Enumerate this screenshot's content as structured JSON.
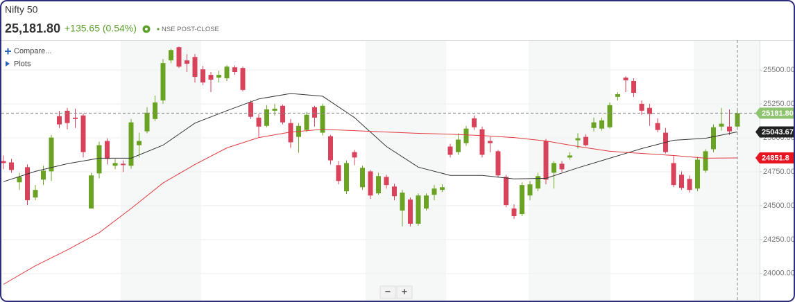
{
  "header": {
    "title": "Nifty 50",
    "price": "25,181.80",
    "change": "+135.65 (0.54%)",
    "exchange": "NSE POST-CLOSE"
  },
  "toolbar": {
    "compare": "Compare...",
    "plots": "Plots",
    "zoom_out": "−",
    "zoom_in": "+"
  },
  "chart_data": {
    "type": "candlestick",
    "open": [
      24829,
      24819,
      24672,
      24784,
      24560,
      24692,
      24753,
      25160,
      25200,
      25149,
      25165,
      24479,
      24738,
      24977,
      24794,
      24809,
      24794,
      24946,
      25048,
      25139,
      25276,
      25571,
      25668,
      25571,
      25596,
      25505,
      25464,
      25444,
      25439,
      25520,
      25515,
      25261,
      25149,
      25088,
      25200,
      25236,
      25109,
      25007,
      25058,
      25226,
      25038,
      25012,
      24799,
      24606,
      24895,
      24636,
      24753,
      24591,
      24712,
      24641,
      24464,
      24545,
      24367,
      24479,
      24580,
      24616,
      24936,
      24895,
      24961,
      25144,
      25063,
      24977,
      24901,
      24712,
      24479,
      24438,
      24575,
      24626,
      24977,
      24743,
      24809,
      24855,
      24982,
      25007,
      25073,
      25068,
      25078,
      25302,
      25444,
      25419,
      25251,
      25221,
      25109,
      25038,
      24814,
      24728,
      24697,
      24626,
      24758,
      24916,
      25083,
      25083,
      25083
    ],
    "high": [
      24870,
      24845,
      24743,
      24804,
      24652,
      24794,
      25022,
      25200,
      25221,
      25215,
      25180,
      24743,
      24972,
      24997,
      24845,
      24834,
      25139,
      25038,
      25226,
      25312,
      25581,
      25657,
      25673,
      25617,
      25617,
      25530,
      25485,
      25495,
      25535,
      25535,
      25525,
      25276,
      25175,
      25241,
      25251,
      25246,
      25139,
      25109,
      25190,
      25236,
      25251,
      25022,
      24829,
      24834,
      24911,
      24794,
      24763,
      24743,
      24728,
      24662,
      24616,
      24560,
      24591,
      24591,
      24652,
      24657,
      24956,
      25033,
      25088,
      25165,
      25083,
      25007,
      24911,
      24728,
      24509,
      24672,
      24682,
      24743,
      24992,
      24829,
      24829,
      24895,
      25033,
      25027,
      25149,
      25149,
      25261,
      25337,
      25454,
      25439,
      25276,
      25251,
      25144,
      25073,
      24865,
      24753,
      24723,
      24860,
      24916,
      25099,
      25221,
      25210,
      25221
    ],
    "low": [
      24768,
      24743,
      24616,
      24504,
      24540,
      24652,
      24682,
      25073,
      25063,
      25073,
      24855,
      24479,
      24702,
      24804,
      24768,
      24748,
      24773,
      24855,
      25033,
      25124,
      25251,
      25551,
      25515,
      25485,
      25408,
      25388,
      25337,
      25408,
      25419,
      25464,
      25342,
      25139,
      25007,
      25078,
      25165,
      25099,
      24926,
      24890,
      25043,
      25083,
      25017,
      24804,
      24657,
      24586,
      24799,
      24616,
      24550,
      24580,
      24626,
      24540,
      24347,
      24347,
      24352,
      24464,
      24540,
      24601,
      24855,
      24875,
      24941,
      25058,
      24855,
      24895,
      24707,
      24489,
      24403,
      24423,
      24540,
      24606,
      24657,
      24626,
      24748,
      24839,
      24921,
      24936,
      25048,
      25053,
      25068,
      25276,
      25337,
      25302,
      25170,
      25088,
      25043,
      24885,
      24636,
      24616,
      24596,
      24606,
      24743,
      24895,
      25053,
      25022,
      25068
    ],
    "close": [
      24814,
      24763,
      24712,
      24540,
      24616,
      24758,
      25002,
      25099,
      25109,
      25139,
      24895,
      24723,
      24946,
      24845,
      24814,
      24799,
      25114,
      24977,
      25185,
      25261,
      25551,
      25647,
      25525,
      25546,
      25449,
      25408,
      25429,
      25464,
      25525,
      25485,
      25353,
      25155,
      25083,
      25210,
      25215,
      25114,
      24967,
      25088,
      25170,
      25149,
      25236,
      24834,
      24682,
      24814,
      24855,
      24779,
      24575,
      24718,
      24652,
      24570,
      24596,
      24367,
      24575,
      24575,
      24626,
      24636,
      24875,
      24987,
      25068,
      25078,
      24875,
      24961,
      24723,
      24504,
      24423,
      24652,
      24657,
      24718,
      24692,
      24814,
      24768,
      24870,
      24997,
      24946,
      25114,
      25129,
      25241,
      25322,
      25424,
      25332,
      25200,
      25175,
      25058,
      24895,
      24652,
      24631,
      24616,
      24839,
      24901,
      25078,
      25104,
      25048,
      25181.8
    ],
    "up_color": "#6aa323",
    "down_color": "#d8435b",
    "lines": [
      {
        "color": "#333333",
        "x": [
          0,
          4,
          8,
          12,
          16,
          20,
          24,
          28,
          32,
          36,
          40,
          44,
          48,
          52,
          56,
          60,
          64,
          68,
          72,
          76,
          80,
          84,
          88,
          92
        ],
        "values": [
          24677,
          24753,
          24809,
          24850,
          24850,
          24946,
          25109,
          25200,
          25287,
          25327,
          25307,
          25149,
          24936,
          24784,
          24723,
          24723,
          24697,
          24702,
          24779,
          24850,
          24921,
          24982,
          24997,
          25043.67
        ]
      },
      {
        "color": "#e0393e",
        "x": [
          0,
          4,
          8,
          12,
          16,
          20,
          24,
          28,
          32,
          36,
          40,
          44,
          48,
          52,
          56,
          60,
          64,
          68,
          72,
          76,
          80,
          84,
          88,
          92
        ],
        "values": [
          23920,
          24057,
          24174,
          24301,
          24479,
          24667,
          24804,
          24926,
          25002,
          25043,
          25063,
          25053,
          25043,
          25033,
          25027,
          25017,
          25002,
          24977,
          24936,
          24901,
          24885,
          24870,
          24850,
          24851.8
        ]
      }
    ],
    "price_tags": [
      {
        "value": 25181.8,
        "label": "25181.80",
        "color": "#8fc46f"
      },
      {
        "value": 25043.67,
        "label": "25043.67",
        "color": "#222222"
      },
      {
        "value": 24851.8,
        "label": "24851.8",
        "color": "#e8141f"
      }
    ],
    "ylim": [
      23800,
      25720
    ],
    "yticks": [
      {
        "value": 25500,
        "label": "25500.00"
      },
      {
        "value": 25250,
        "label": "25250.00"
      },
      {
        "value": 25000,
        "label": "25000.00"
      },
      {
        "value": 24750,
        "label": "24750.00"
      },
      {
        "value": 24500,
        "label": "24500.00"
      },
      {
        "value": 24250,
        "label": "24250.00"
      },
      {
        "value": 24000,
        "label": "24000.00"
      }
    ],
    "grid": true
  }
}
